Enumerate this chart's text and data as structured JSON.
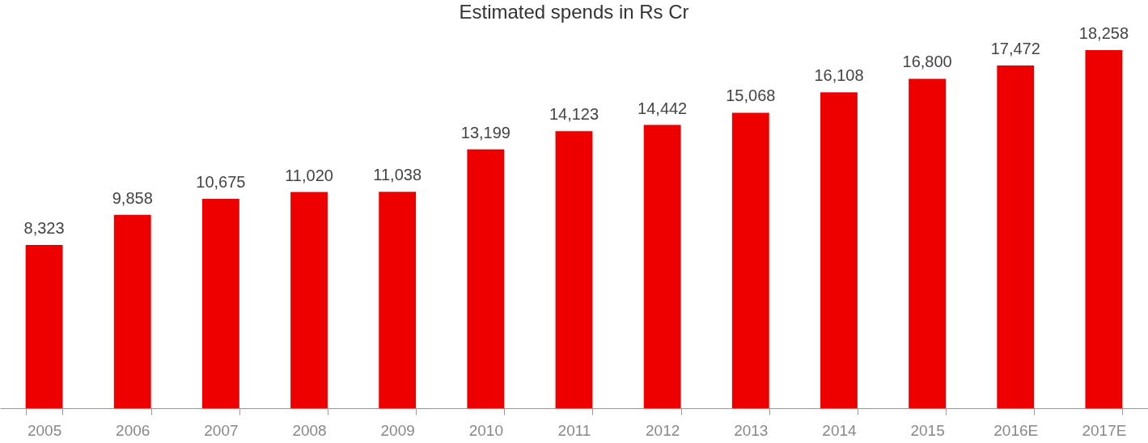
{
  "chart_data": {
    "type": "bar",
    "title": "Estimated spends in Rs Cr",
    "categories": [
      "2005",
      "2006",
      "2007",
      "2008",
      "2009",
      "2010",
      "2011",
      "2012",
      "2013",
      "2014",
      "2015",
      "2016E",
      "2017E"
    ],
    "values": [
      8323,
      9858,
      10675,
      11020,
      11038,
      13199,
      14123,
      14442,
      15068,
      16108,
      16800,
      17472,
      18258
    ],
    "value_labels": [
      "8,323",
      "9,858",
      "10,675",
      "11,020",
      "11,038",
      "13,199",
      "14,123",
      "14,442",
      "15,068",
      "16,108",
      "16,800",
      "17,472",
      "18,258"
    ],
    "color": "#ee0000"
  }
}
